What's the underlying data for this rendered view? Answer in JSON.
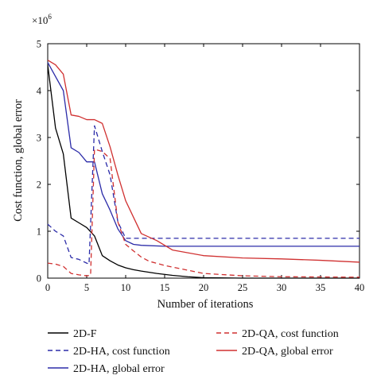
{
  "chart_data": {
    "type": "line",
    "xlabel": "Number of iterations",
    "ylabel": "Cost function, global error",
    "scale_label": {
      "base": "×10",
      "exponent": "6"
    },
    "xlim": [
      0,
      40
    ],
    "ylim": [
      0,
      5
    ],
    "xticks": [
      0,
      5,
      10,
      15,
      20,
      25,
      30,
      35,
      40
    ],
    "xtick_labels": [
      "0",
      "5",
      "10",
      "15",
      "20",
      "25",
      "30",
      "35",
      "40"
    ],
    "yticks": [
      0,
      1,
      2,
      3,
      4,
      5
    ],
    "ytick_labels": [
      "0",
      "1",
      "2",
      "3",
      "4",
      "5"
    ],
    "grid": false,
    "legend_position": "bottom",
    "series": [
      {
        "name": "2D-F",
        "color": "#000000",
        "dash": "solid",
        "x": [
          0,
          1,
          2,
          3,
          4,
          5,
          6,
          7,
          8,
          9,
          10,
          11,
          12,
          14,
          16,
          18,
          20,
          25,
          30,
          40
        ],
        "y": [
          4.55,
          3.2,
          2.65,
          1.28,
          1.18,
          1.08,
          0.9,
          0.48,
          0.37,
          0.28,
          0.22,
          0.18,
          0.15,
          0.1,
          0.06,
          0.03,
          0.01,
          0.0,
          0.0,
          0.0
        ]
      },
      {
        "name": "2D-HA, cost function",
        "color": "#2b2ba8",
        "dash": "dashed",
        "x": [
          0,
          1,
          2,
          3,
          4,
          5,
          5.3,
          6,
          7,
          8,
          9,
          10,
          11,
          12,
          15,
          20,
          30,
          40
        ],
        "y": [
          1.15,
          1.0,
          0.9,
          0.44,
          0.4,
          0.32,
          0.3,
          3.25,
          2.7,
          2.2,
          1.2,
          0.85,
          0.85,
          0.85,
          0.85,
          0.85,
          0.85,
          0.85
        ]
      },
      {
        "name": "2D-HA, global error",
        "color": "#2b2ba8",
        "dash": "solid",
        "x": [
          0,
          1,
          2,
          3,
          4,
          5,
          6,
          7,
          8,
          9,
          10,
          11,
          12,
          15,
          20,
          30,
          40
        ],
        "y": [
          4.6,
          4.3,
          4.0,
          2.78,
          2.68,
          2.48,
          2.48,
          1.8,
          1.45,
          1.05,
          0.8,
          0.72,
          0.7,
          0.68,
          0.68,
          0.68,
          0.68
        ]
      },
      {
        "name": "2D-QA, cost function",
        "color": "#d03030",
        "dash": "dashed",
        "x": [
          0,
          1,
          2,
          3,
          4,
          5,
          5.5,
          6,
          7,
          8,
          9,
          10,
          11,
          12,
          13,
          15,
          20,
          25,
          30,
          40
        ],
        "y": [
          0.32,
          0.3,
          0.25,
          0.1,
          0.07,
          0.05,
          0.06,
          2.75,
          2.7,
          2.55,
          1.2,
          0.72,
          0.58,
          0.45,
          0.36,
          0.27,
          0.1,
          0.05,
          0.03,
          0.02
        ]
      },
      {
        "name": "2D-QA, global error",
        "color": "#d03030",
        "dash": "solid",
        "x": [
          0,
          1,
          2,
          3,
          4,
          5,
          6,
          7,
          8,
          9,
          10,
          11,
          12,
          14,
          16,
          20,
          25,
          30,
          35,
          40
        ],
        "y": [
          4.65,
          4.55,
          4.35,
          3.48,
          3.45,
          3.38,
          3.38,
          3.3,
          2.8,
          2.2,
          1.65,
          1.3,
          0.95,
          0.8,
          0.6,
          0.48,
          0.43,
          0.41,
          0.38,
          0.34
        ]
      }
    ]
  }
}
